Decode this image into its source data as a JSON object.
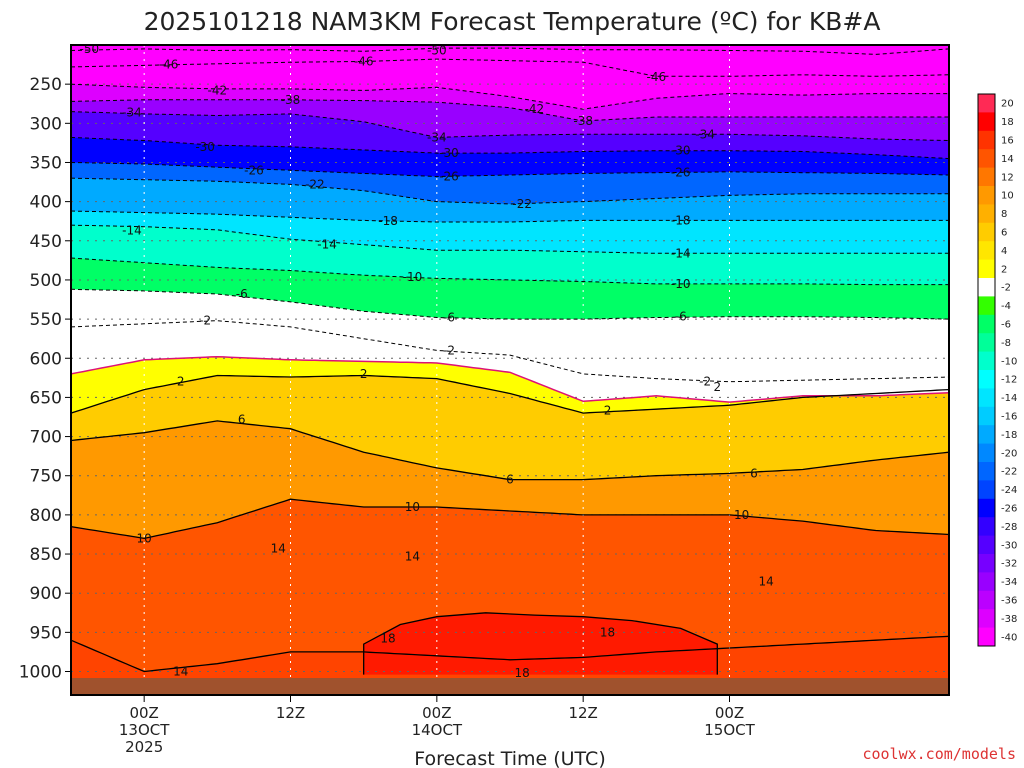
{
  "chart_data": {
    "type": "heatmap",
    "title": "2025101218 NAM3KM Forecast Temperature (ºC) for KB#A",
    "xlabel": "Forecast Time (UTC)",
    "ylabel": "",
    "credit": "coolwx.com/models",
    "x_unit": "hours since 2025-10-12 18Z",
    "xlim": [
      -6,
      66
    ],
    "y_unit": "hPa",
    "ylim": [
      1030,
      200
    ],
    "y_ticks": [
      250,
      300,
      350,
      400,
      450,
      500,
      550,
      600,
      650,
      700,
      750,
      800,
      850,
      900,
      950,
      1000
    ],
    "y_tick_labels": [
      "250",
      "300",
      "350",
      "400",
      "450",
      "500",
      "550",
      "600",
      "650",
      "700",
      "750",
      "800",
      "850",
      "900",
      "950",
      "1000"
    ],
    "x_ticks": [
      {
        "x": 0,
        "lines": [
          "00Z",
          "13OCT",
          "2025"
        ]
      },
      {
        "x": 12,
        "lines": [
          "12Z"
        ]
      },
      {
        "x": 24,
        "lines": [
          "00Z",
          "14OCT"
        ]
      },
      {
        "x": 36,
        "lines": [
          "12Z"
        ]
      },
      {
        "x": 48,
        "lines": [
          "00Z",
          "15OCT"
        ]
      }
    ],
    "colorbar": {
      "levels": [
        20,
        18,
        16,
        14,
        12,
        10,
        8,
        6,
        4,
        2,
        -2,
        -4,
        -6,
        -8,
        -10,
        -12,
        -14,
        -16,
        -18,
        -20,
        -22,
        -24,
        -26,
        -28,
        -30,
        -32,
        -34,
        -36,
        -38,
        -40
      ],
      "labels": [
        "20",
        "18",
        "16",
        "14",
        "12",
        "10",
        "8",
        "6",
        "4",
        "2",
        "-2",
        "-4",
        "-6",
        "-8",
        "-10",
        "-12",
        "-14",
        "-16",
        "-18",
        "-20",
        "-22",
        "-24",
        "-26",
        "-28",
        "-30",
        "-32",
        "-34",
        "-36",
        "-38",
        "-40"
      ],
      "colors": [
        "#ff2a55",
        "#ff0000",
        "#ff3300",
        "#ff5500",
        "#ff7700",
        "#ff9900",
        "#ffb000",
        "#ffcc00",
        "#ffe600",
        "#ffff00",
        "#ffffff",
        "#33ff00",
        "#00ff66",
        "#00ff99",
        "#00ffcc",
        "#00ffff",
        "#00e5ff",
        "#00ccff",
        "#00aaff",
        "#0088ff",
        "#0066ff",
        "#0044ff",
        "#0000ff",
        "#3300ff",
        "#5500ff",
        "#7700ff",
        "#9900ff",
        "#bb00ff",
        "#dd00ff",
        "#ff00ff"
      ]
    },
    "underground_color": "#a0522d",
    "freezing_line_color": "#dd1177",
    "series": [
      {
        "name": "-50",
        "style": "dashed",
        "label": "-50",
        "label_points": [
          [
            -4.5,
            205
          ],
          [
            24,
            207
          ]
        ],
        "x": [
          -6,
          0,
          6,
          12,
          18,
          24,
          30,
          36,
          42,
          48,
          54,
          60,
          66
        ],
        "values": [
          207,
          205,
          207,
          206,
          208,
          204,
          204,
          206,
          206,
          207,
          208,
          212,
          205
        ]
      },
      {
        "name": "-46",
        "style": "dashed",
        "label": "-46",
        "label_points": [
          [
            2,
            225
          ],
          [
            18,
            221
          ],
          [
            42,
            241
          ]
        ],
        "x": [
          -6,
          0,
          6,
          12,
          18,
          24,
          30,
          36,
          42,
          48,
          54,
          60,
          66
        ],
        "values": [
          228,
          226,
          224,
          222,
          221,
          218,
          220,
          222,
          240,
          240,
          238,
          240,
          238
        ]
      },
      {
        "name": "-42",
        "style": "dashed",
        "label": "-42",
        "label_points": [
          [
            6,
            258
          ],
          [
            32,
            282
          ]
        ],
        "x": [
          -6,
          0,
          6,
          12,
          18,
          24,
          30,
          36,
          42,
          48,
          54,
          60,
          66
        ],
        "values": [
          250,
          254,
          256,
          256,
          258,
          254,
          266,
          282,
          268,
          262,
          264,
          262,
          262
        ]
      },
      {
        "name": "-38",
        "style": "dashed",
        "label": "-38",
        "label_points": [
          [
            12,
            270
          ],
          [
            36,
            297
          ]
        ],
        "x": [
          -6,
          0,
          6,
          12,
          18,
          24,
          30,
          36,
          42,
          48,
          54,
          60,
          66
        ],
        "values": [
          272,
          270,
          270,
          270,
          271,
          273,
          280,
          297,
          292,
          292,
          292,
          292,
          292
        ]
      },
      {
        "name": "-34",
        "style": "dashed",
        "label": "-34",
        "label_points": [
          [
            -1,
            286
          ],
          [
            24,
            318
          ],
          [
            46,
            314
          ]
        ],
        "x": [
          -6,
          0,
          6,
          12,
          18,
          24,
          30,
          36,
          42,
          48,
          54,
          60,
          66
        ],
        "values": [
          285,
          288,
          290,
          288,
          298,
          318,
          315,
          314,
          314,
          314,
          316,
          320,
          322
        ]
      },
      {
        "name": "-30",
        "style": "dashed",
        "label": "-30",
        "label_points": [
          [
            5,
            330
          ],
          [
            25,
            338
          ],
          [
            44,
            335
          ]
        ],
        "x": [
          -6,
          0,
          6,
          12,
          18,
          24,
          30,
          36,
          42,
          48,
          54,
          60,
          66
        ],
        "values": [
          318,
          322,
          328,
          330,
          334,
          338,
          338,
          336,
          335,
          335,
          336,
          340,
          345
        ]
      },
      {
        "name": "-26",
        "style": "dashed",
        "label": "-26",
        "label_points": [
          [
            9,
            360
          ],
          [
            25,
            368
          ],
          [
            44,
            363
          ]
        ],
        "x": [
          -6,
          0,
          6,
          12,
          18,
          24,
          30,
          36,
          42,
          48,
          54,
          60,
          66
        ],
        "values": [
          350,
          352,
          356,
          360,
          364,
          368,
          366,
          364,
          363,
          362,
          363,
          364,
          366
        ]
      },
      {
        "name": "-22",
        "style": "dashed",
        "label": "-22",
        "label_points": [
          [
            14,
            378
          ],
          [
            31,
            403
          ]
        ],
        "x": [
          -6,
          0,
          6,
          12,
          18,
          24,
          30,
          36,
          42,
          48,
          54,
          60,
          66
        ],
        "values": [
          370,
          372,
          374,
          378,
          386,
          400,
          403,
          400,
          396,
          392,
          390,
          390,
          390
        ]
      },
      {
        "name": "-18",
        "style": "dashed",
        "label": "-18",
        "label_points": [
          [
            20,
            425
          ],
          [
            44,
            424
          ]
        ],
        "x": [
          -6,
          0,
          6,
          12,
          18,
          24,
          30,
          36,
          42,
          48,
          54,
          60,
          66
        ],
        "values": [
          412,
          414,
          416,
          420,
          424,
          426,
          426,
          424,
          424,
          424,
          424,
          424,
          424
        ]
      },
      {
        "name": "-14",
        "style": "dashed",
        "label": "-14",
        "label_points": [
          [
            -1,
            437
          ],
          [
            15,
            455
          ],
          [
            44,
            466
          ]
        ],
        "x": [
          -6,
          0,
          6,
          12,
          18,
          24,
          30,
          36,
          42,
          48,
          54,
          60,
          66
        ],
        "values": [
          430,
          432,
          436,
          448,
          455,
          462,
          462,
          464,
          466,
          466,
          466,
          466,
          466
        ]
      },
      {
        "name": "-10",
        "style": "dashed",
        "label": "-10",
        "label_points": [
          [
            22,
            496
          ],
          [
            44,
            505
          ]
        ],
        "x": [
          -6,
          0,
          6,
          12,
          18,
          24,
          30,
          36,
          42,
          48,
          54,
          60,
          66
        ],
        "values": [
          472,
          478,
          484,
          488,
          494,
          498,
          500,
          502,
          505,
          505,
          505,
          506,
          506
        ]
      },
      {
        "name": "-6",
        "style": "dashed",
        "label": "-6",
        "label_points": [
          [
            8,
            518
          ],
          [
            25,
            548
          ],
          [
            44,
            547
          ]
        ],
        "x": [
          -6,
          0,
          6,
          12,
          18,
          24,
          30,
          36,
          42,
          48,
          54,
          60,
          66
        ],
        "values": [
          512,
          514,
          518,
          528,
          540,
          548,
          550,
          550,
          548,
          547,
          547,
          548,
          550
        ]
      },
      {
        "name": "-2",
        "style": "dashed",
        "label": "-2",
        "label_points": [
          [
            5,
            552
          ],
          [
            25,
            590
          ],
          [
            46,
            630
          ]
        ],
        "x": [
          -6,
          0,
          6,
          12,
          18,
          24,
          30,
          36,
          42,
          48,
          54,
          60,
          66
        ],
        "values": [
          560,
          556,
          552,
          560,
          575,
          590,
          596,
          620,
          626,
          630,
          628,
          626,
          624
        ]
      },
      {
        "name": "0",
        "style": "freezing",
        "label": "",
        "label_points": [],
        "x": [
          -6,
          0,
          6,
          12,
          18,
          24,
          30,
          36,
          42,
          48,
          54,
          60,
          66
        ],
        "values": [
          620,
          602,
          598,
          602,
          604,
          606,
          618,
          655,
          648,
          656,
          648,
          648,
          644
        ]
      },
      {
        "name": "2",
        "style": "solid",
        "label": "2",
        "label_points": [
          [
            3,
            630
          ],
          [
            18,
            620
          ],
          [
            38,
            667
          ],
          [
            47,
            637
          ]
        ],
        "x": [
          -6,
          0,
          6,
          12,
          18,
          24,
          30,
          36,
          42,
          48,
          54,
          60,
          66
        ],
        "values": [
          670,
          640,
          622,
          624,
          622,
          626,
          645,
          670,
          665,
          660,
          650,
          645,
          640
        ]
      },
      {
        "name": "6",
        "style": "solid",
        "label": "6",
        "label_points": [
          [
            8,
            678
          ],
          [
            30,
            755
          ],
          [
            50,
            747
          ]
        ],
        "x": [
          -6,
          0,
          6,
          12,
          18,
          24,
          30,
          36,
          42,
          48,
          54,
          60,
          66
        ],
        "values": [
          705,
          695,
          680,
          690,
          720,
          740,
          755,
          755,
          750,
          747,
          742,
          730,
          720
        ]
      },
      {
        "name": "10",
        "style": "solid",
        "label": "10",
        "label_points": [
          [
            0,
            830
          ],
          [
            22,
            790
          ],
          [
            49,
            800
          ]
        ],
        "x": [
          -6,
          0,
          6,
          12,
          18,
          24,
          30,
          36,
          42,
          48,
          54,
          60,
          66
        ],
        "values": [
          815,
          830,
          810,
          780,
          790,
          790,
          795,
          800,
          800,
          800,
          808,
          820,
          825
        ]
      },
      {
        "name": "14",
        "style": "solid",
        "label": "14",
        "label_points": [
          [
            3,
            1000
          ],
          [
            11,
            843
          ],
          [
            22,
            853
          ],
          [
            51,
            885
          ]
        ],
        "x": [
          -6,
          0,
          6,
          12,
          18,
          24,
          30,
          36,
          42,
          48,
          54,
          60,
          66
        ],
        "values": [
          960,
          1000,
          990,
          975,
          975,
          980,
          985,
          982,
          975,
          970,
          965,
          960,
          955
        ]
      },
      {
        "name": "18",
        "style": "solid",
        "label": "18",
        "label_points": [
          [
            20,
            958
          ],
          [
            38,
            950
          ],
          [
            31,
            1002
          ]
        ],
        "x": [
          18,
          21,
          24,
          28,
          32,
          36,
          40,
          44,
          47
        ],
        "values": [
          965,
          940,
          930,
          925,
          928,
          930,
          935,
          945,
          965
        ]
      }
    ]
  }
}
